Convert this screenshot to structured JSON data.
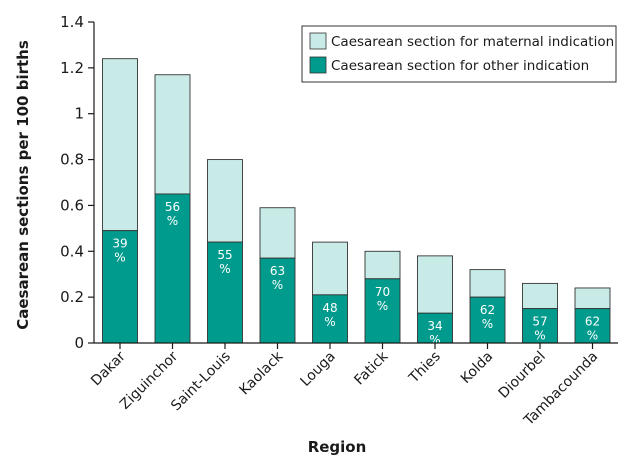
{
  "chart_data": {
    "type": "bar",
    "stacked": true,
    "ylabel": "Caesarean sections per 100 births",
    "xlabel": "Region",
    "ylim": [
      0,
      1.4
    ],
    "yticks": [
      "0",
      "0.2",
      "0.4",
      "0.6",
      "0.8",
      "1",
      "1.2",
      "1.4"
    ],
    "ytick_values": [
      0,
      0.2,
      0.4,
      0.6,
      0.8,
      1,
      1.2,
      1.4
    ],
    "categories": [
      "Dakar",
      "Ziguinchor",
      "Saint-Louis",
      "Kaolack",
      "Louga",
      "Fatick",
      "Thies",
      "Kolda",
      "Diourbel",
      "Tambacounda"
    ],
    "series": [
      {
        "name": "Caesarean section for other indication",
        "color": "#009b8d",
        "values": [
          0.49,
          0.65,
          0.44,
          0.37,
          0.21,
          0.28,
          0.13,
          0.2,
          0.15,
          0.15
        ]
      },
      {
        "name": "Caesarean section for maternal indication",
        "color": "#c9ebe7",
        "values": [
          0.75,
          0.52,
          0.36,
          0.22,
          0.23,
          0.12,
          0.25,
          0.12,
          0.11,
          0.09
        ]
      }
    ],
    "data_labels": [
      [
        "39",
        "%"
      ],
      [
        "56",
        "%"
      ],
      [
        "55",
        "%"
      ],
      [
        "63",
        "%"
      ],
      [
        "48",
        "%"
      ],
      [
        "70",
        "%"
      ],
      [
        "34",
        "%"
      ],
      [
        "62",
        "%"
      ],
      [
        "57",
        "%"
      ],
      [
        "62",
        "%"
      ]
    ],
    "legend": {
      "placement": "top-right",
      "entries": [
        {
          "label": "Caesarean section for maternal indication",
          "color": "#c9ebe7"
        },
        {
          "label": "Caesarean section for other indication",
          "color": "#009b8d"
        }
      ]
    },
    "grid": false
  }
}
